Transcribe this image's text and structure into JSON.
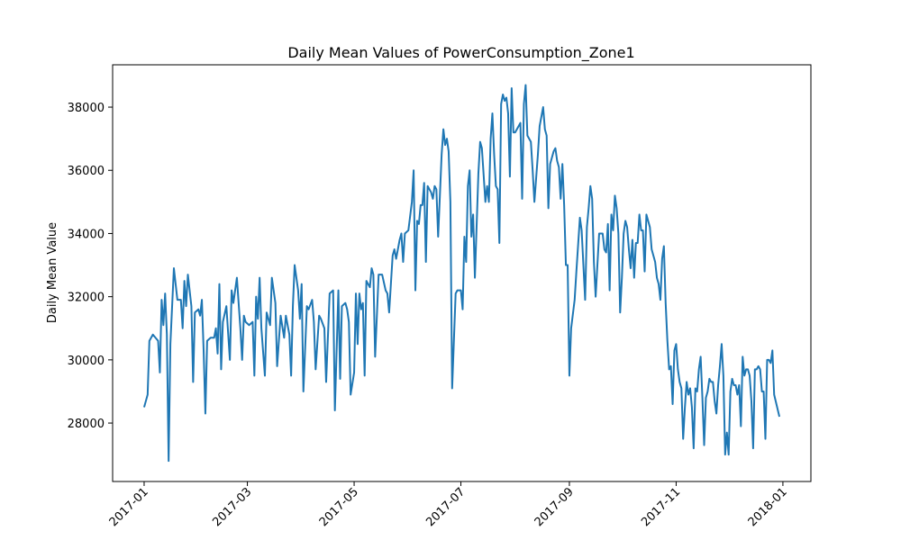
{
  "chart_data": {
    "type": "line",
    "title": "Daily Mean Values of PowerConsumption_Zone1",
    "y_label": "Daily Mean Value",
    "x": [
      0,
      2,
      3,
      5,
      8,
      9,
      10,
      11,
      12,
      13,
      14,
      15,
      17,
      19,
      21,
      22,
      23,
      24,
      25,
      27,
      28,
      29,
      31,
      32,
      33,
      34,
      35,
      36,
      38,
      40,
      41,
      42,
      43,
      44,
      45,
      47,
      49,
      50,
      51,
      53,
      55,
      56,
      57,
      58,
      60,
      62,
      63,
      64,
      65,
      66,
      67,
      69,
      70,
      72,
      73,
      75,
      76,
      78,
      80,
      81,
      83,
      84,
      85,
      86,
      88,
      89,
      90,
      91,
      93,
      94,
      96,
      97,
      98,
      100,
      101,
      103,
      104,
      106,
      108,
      109,
      111,
      112,
      113,
      115,
      116,
      117,
      118,
      120,
      121,
      122,
      123,
      124,
      125,
      126,
      127,
      129,
      130,
      131,
      132,
      134,
      136,
      138,
      139,
      140,
      142,
      143,
      144,
      146,
      147,
      148,
      149,
      151,
      153,
      154,
      155,
      156,
      157,
      158,
      159,
      160,
      161,
      162,
      164,
      165,
      166,
      167,
      168,
      170,
      171,
      172,
      173,
      174,
      175,
      176,
      178,
      179,
      181,
      182,
      183,
      184,
      185,
      186,
      187,
      188,
      189,
      191,
      192,
      193,
      195,
      196,
      197,
      198,
      199,
      200,
      201,
      202,
      203,
      204,
      205,
      206,
      207,
      208,
      209,
      210,
      211,
      212,
      214,
      215,
      216,
      217,
      218,
      219,
      221,
      222,
      223,
      225,
      226,
      228,
      229,
      230,
      231,
      232,
      234,
      235,
      236,
      237,
      238,
      239,
      240,
      241,
      242,
      243,
      244,
      246,
      247,
      249,
      250,
      252,
      253,
      254,
      255,
      256,
      257,
      258,
      260,
      262,
      263,
      264,
      265,
      266,
      267,
      268,
      269,
      270,
      271,
      272,
      273,
      274,
      275,
      276,
      277,
      278,
      279,
      280,
      281,
      282,
      283,
      284,
      285,
      286,
      287,
      289,
      290,
      292,
      293,
      294,
      295,
      296,
      297,
      298,
      299,
      300,
      301,
      302,
      303,
      304,
      305,
      306,
      307,
      308,
      309,
      310,
      311,
      312,
      313,
      314,
      315,
      316,
      317,
      318,
      319,
      320,
      321,
      322,
      323,
      324,
      325,
      326,
      327,
      328,
      329,
      330,
      331,
      332,
      333,
      334,
      335,
      336,
      337,
      338,
      339,
      340,
      341,
      342,
      343,
      344,
      345,
      346,
      347,
      348,
      349,
      350,
      351,
      352,
      353,
      354,
      355,
      356,
      357,
      358,
      359,
      360,
      363
    ],
    "series": [
      {
        "name": "PowerConsumption_Zone1",
        "color": "#1f77b4",
        "values": [
          28500,
          28900,
          30600,
          30800,
          30600,
          29600,
          31900,
          31100,
          32100,
          30800,
          26800,
          30500,
          32900,
          31900,
          31900,
          31000,
          32500,
          31700,
          32700,
          31700,
          29300,
          31500,
          31600,
          31400,
          31900,
          30300,
          28300,
          30600,
          30700,
          30700,
          31000,
          30200,
          32400,
          29700,
          31200,
          31700,
          30000,
          32200,
          31800,
          32600,
          31000,
          30000,
          31400,
          31200,
          31100,
          31200,
          29500,
          32000,
          31300,
          32600,
          31000,
          29500,
          31500,
          31100,
          32600,
          31800,
          29800,
          31400,
          30700,
          31400,
          30800,
          29500,
          31700,
          33000,
          32200,
          31300,
          32400,
          29000,
          31700,
          31600,
          31900,
          31200,
          29700,
          31400,
          31300,
          31000,
          29300,
          32100,
          32200,
          28400,
          32200,
          29400,
          31700,
          31800,
          31600,
          31200,
          28900,
          29600,
          32100,
          30500,
          32100,
          31600,
          31800,
          29500,
          32500,
          32300,
          32900,
          32700,
          30100,
          32700,
          32700,
          32200,
          32100,
          31500,
          33300,
          33500,
          33200,
          33800,
          34000,
          33100,
          34000,
          34100,
          35000,
          36000,
          32200,
          34400,
          34300,
          34900,
          34900,
          35600,
          33100,
          35500,
          35300,
          35100,
          35500,
          35400,
          33900,
          36500,
          37300,
          36800,
          37000,
          36600,
          35000,
          29100,
          32100,
          32200,
          32200,
          31600,
          33900,
          33100,
          35500,
          36000,
          33900,
          34600,
          32600,
          35900,
          36900,
          36700,
          35000,
          35500,
          35000,
          37000,
          37800,
          36500,
          35500,
          35400,
          33700,
          38100,
          38400,
          38200,
          38300,
          37800,
          35800,
          38600,
          37200,
          37200,
          37400,
          37500,
          35100,
          38100,
          38700,
          37100,
          36900,
          36000,
          35000,
          36500,
          37400,
          38000,
          37300,
          37100,
          34800,
          36200,
          36600,
          36700,
          36300,
          36100,
          35100,
          36200,
          34900,
          33000,
          33000,
          29500,
          31000,
          31900,
          32800,
          34500,
          34100,
          31900,
          34200,
          34800,
          35500,
          35100,
          33100,
          32000,
          34000,
          34000,
          33500,
          33400,
          34300,
          32200,
          34600,
          34100,
          35200,
          34800,
          34000,
          31500,
          32600,
          34000,
          34400,
          34200,
          33500,
          32900,
          33800,
          32600,
          33700,
          33700,
          34600,
          34100,
          34100,
          32800,
          34600,
          34200,
          33500,
          33100,
          32600,
          32400,
          31900,
          33200,
          33600,
          31800,
          30600,
          29700,
          29800,
          28600,
          30300,
          30500,
          29700,
          29300,
          29100,
          27500,
          28500,
          29300,
          28900,
          29100,
          28500,
          27200,
          29100,
          29000,
          29700,
          30100,
          28800,
          27300,
          28800,
          29000,
          29400,
          29300,
          29300,
          28700,
          28300,
          29200,
          29800,
          30500,
          29500,
          27000,
          27700,
          27000,
          29000,
          29400,
          29200,
          29200,
          28900,
          29200,
          27900,
          30100,
          29500,
          29700,
          29700,
          29500,
          28700,
          27200,
          29700,
          29700,
          29800,
          29700,
          29000,
          29000,
          27500,
          30000,
          30000,
          29900,
          30300,
          28900,
          28200
        ]
      }
    ],
    "xlim": [
      -18,
      381
    ],
    "xticks": [
      {
        "value": 0,
        "label": "2017-01"
      },
      {
        "value": 59,
        "label": "2017-03"
      },
      {
        "value": 120,
        "label": "2017-05"
      },
      {
        "value": 181,
        "label": "2017-07"
      },
      {
        "value": 243,
        "label": "2017-09"
      },
      {
        "value": 304,
        "label": "2017-11"
      },
      {
        "value": 365,
        "label": "2018-01"
      }
    ],
    "ylim": [
      26150,
      39340
    ],
    "yticks": [
      28000,
      30000,
      32000,
      34000,
      36000,
      38000
    ],
    "grid": false
  }
}
